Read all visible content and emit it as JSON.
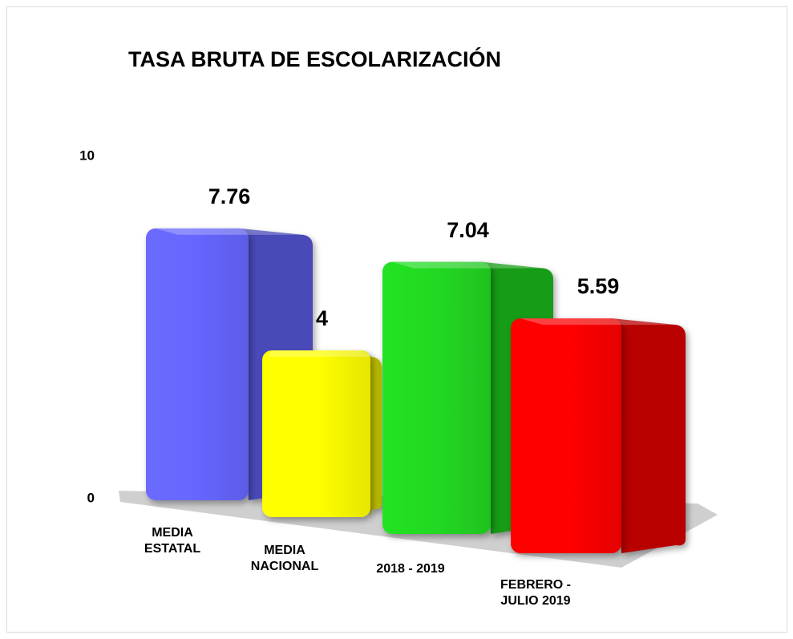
{
  "chart_data": {
    "type": "bar3d",
    "title": "TASA BRUTA DE ESCOLARIZACIÓN",
    "categories": [
      "MEDIA ESTATAL",
      "MEDIA NACIONAL",
      "2018 - 2019",
      "FEBRERO - JULIO 2019"
    ],
    "values": [
      7.76,
      4,
      7.04,
      5.59
    ],
    "colors": [
      "#6666ff",
      "#ffff00",
      "#22d822",
      "#ff0000"
    ],
    "ylim": [
      0,
      10
    ],
    "yticks": [
      0,
      10
    ],
    "grid": false
  }
}
